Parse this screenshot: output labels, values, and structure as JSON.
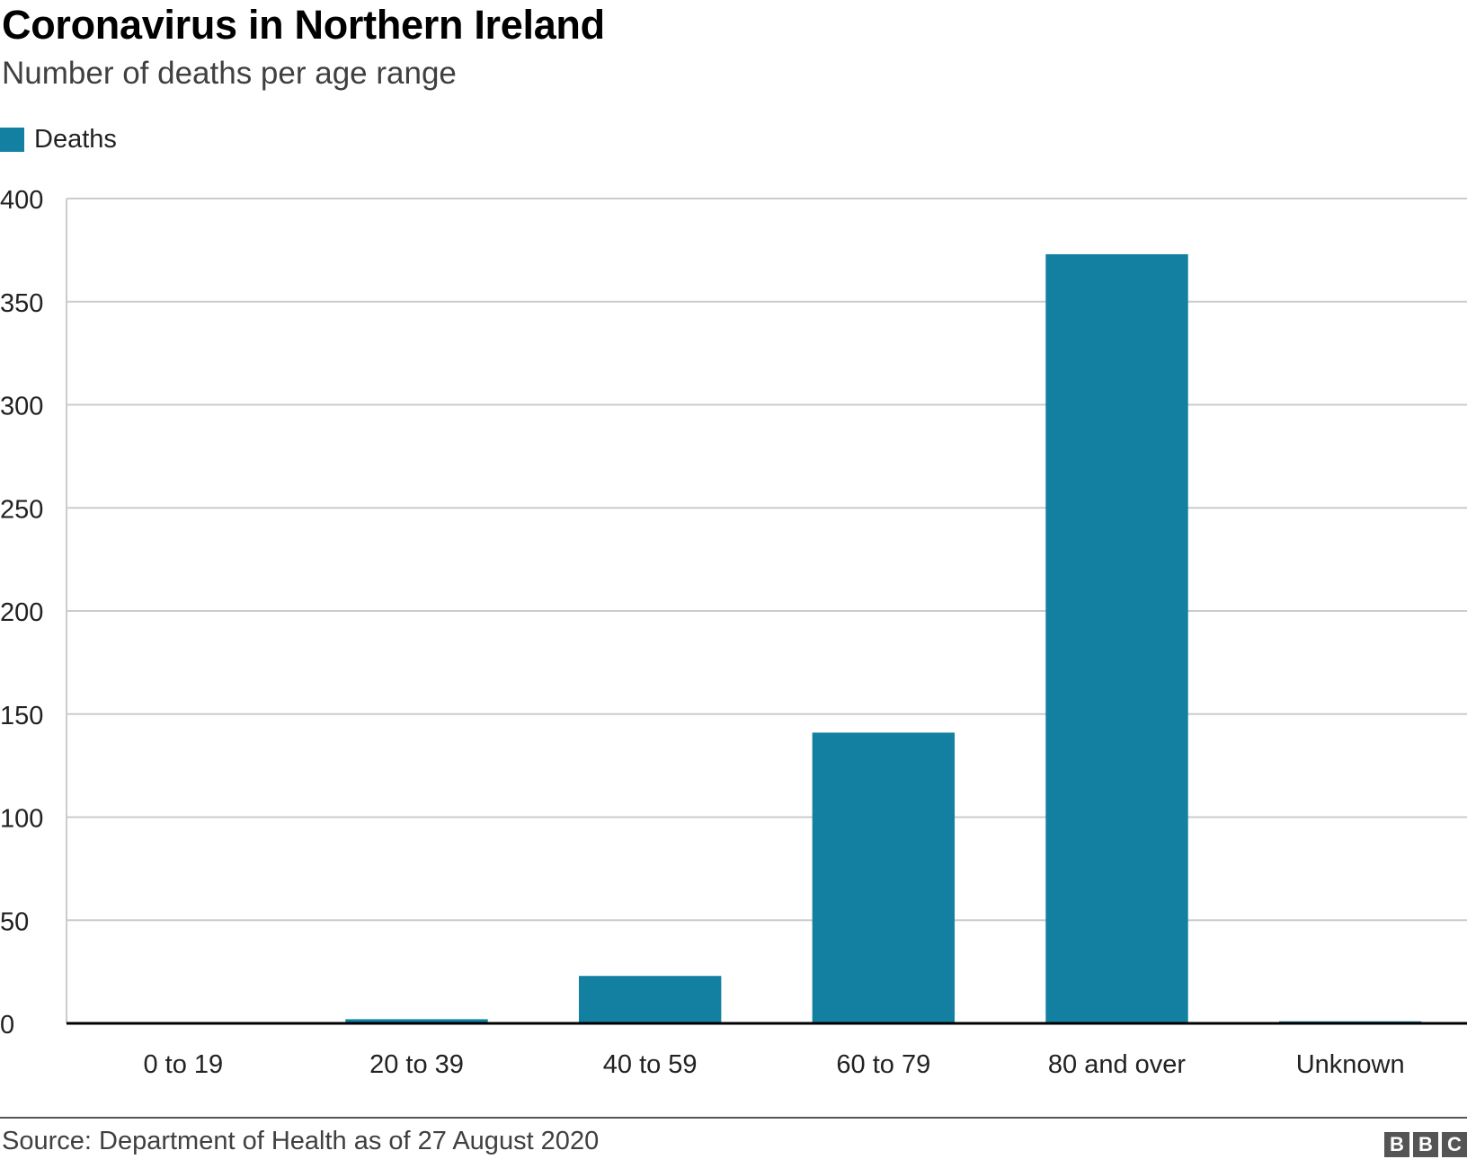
{
  "title": "Coronavirus in Northern Ireland",
  "subtitle": "Number of deaths per age range",
  "source": "Source: Department of Health as of 27 August 2020",
  "logo": {
    "letters": [
      "B",
      "B",
      "C"
    ]
  },
  "colors": {
    "bar": "#1380A1",
    "grid": "#cccccc",
    "axis": "#000000"
  },
  "chart_data": {
    "type": "bar",
    "categories": [
      "0 to 19",
      "20 to 39",
      "40 to 59",
      "60 to 79",
      "80 and over",
      "Unknown"
    ],
    "series": [
      {
        "name": "Deaths",
        "values": [
          0,
          2,
          23,
          141,
          373,
          1
        ]
      }
    ],
    "title": "Coronavirus in Northern Ireland",
    "subtitle": "Number of deaths per age range",
    "xlabel": "",
    "ylabel": "",
    "ylim": [
      0,
      400
    ],
    "yticks": [
      0,
      50,
      100,
      150,
      200,
      250,
      300,
      350,
      400
    ],
    "grid": true,
    "legend": "top-left"
  }
}
